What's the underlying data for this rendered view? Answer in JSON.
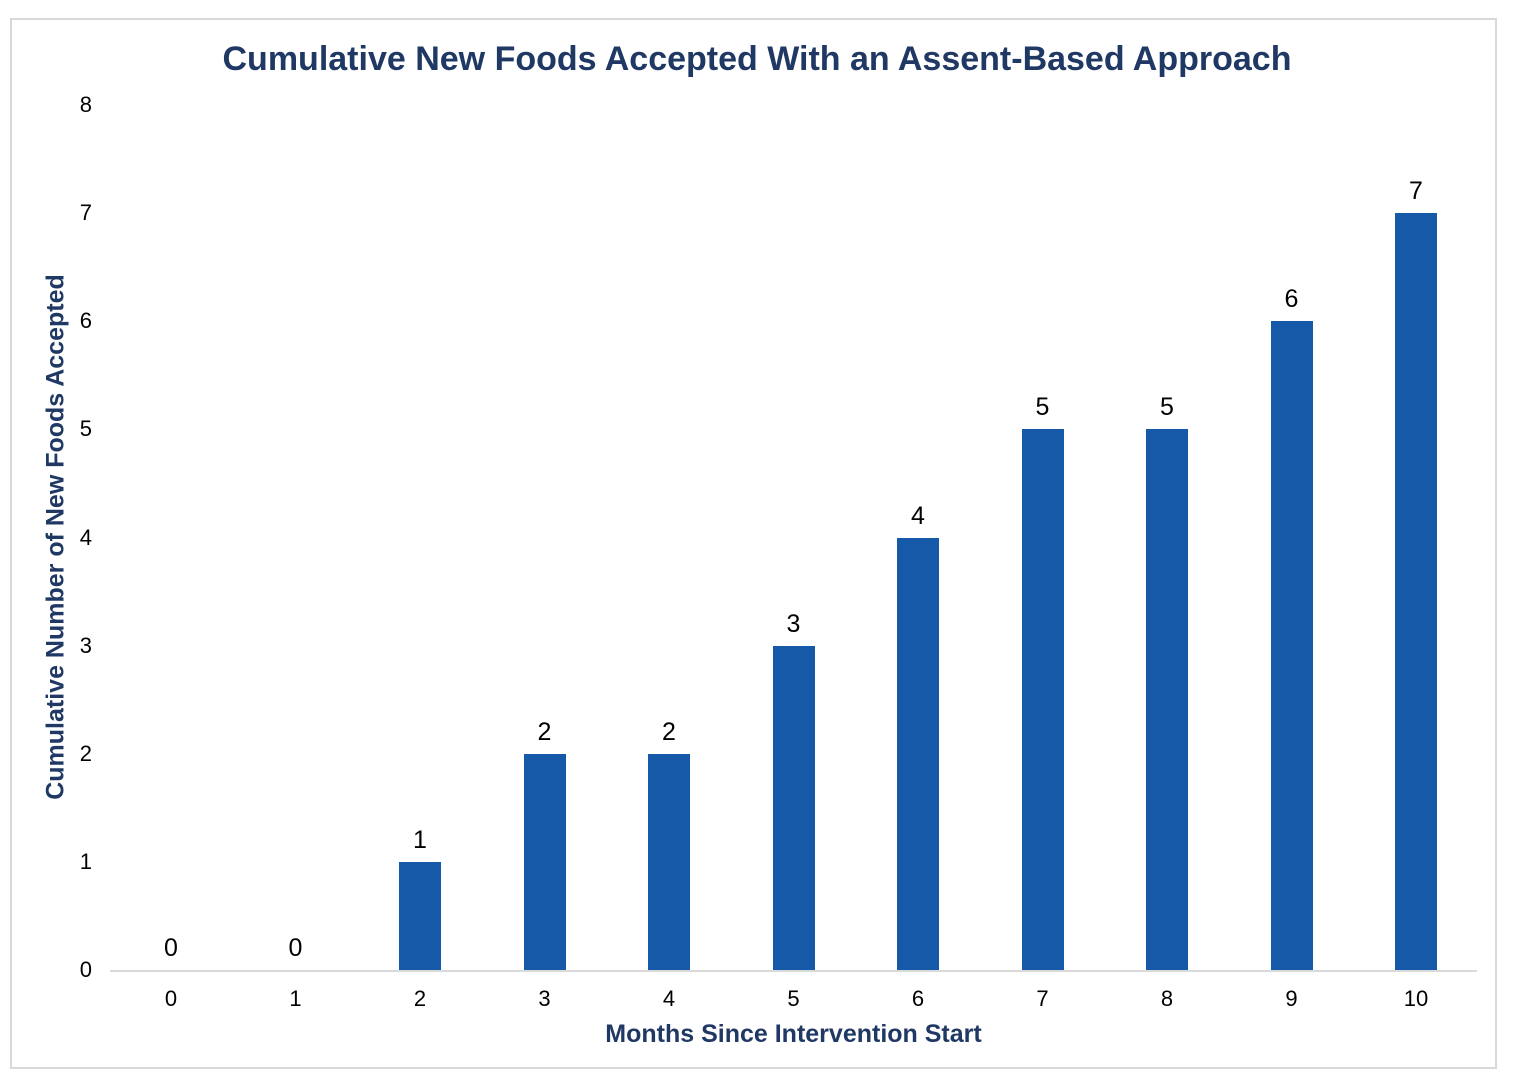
{
  "page": {
    "background_color": "#ffffff",
    "frame_border_color": "#D9D9D9"
  },
  "chart_data": {
    "type": "bar",
    "title": "Cumulative New Foods Accepted With an Assent-Based Approach",
    "xlabel": "Months Since Intervention Start",
    "ylabel": "Cumulative Number of New Foods Accepted",
    "categories": [
      "0",
      "1",
      "2",
      "3",
      "4",
      "5",
      "6",
      "7",
      "8",
      "9",
      "10"
    ],
    "values": [
      0,
      0,
      1,
      2,
      2,
      3,
      4,
      5,
      5,
      6,
      7
    ],
    "y_ticks": [
      "0",
      "1",
      "2",
      "3",
      "4",
      "5",
      "6",
      "7",
      "8"
    ],
    "ylim": [
      0,
      8
    ],
    "grid": false,
    "legend": "none",
    "data_labels_shown": true,
    "bar_color": "#1659A8",
    "title_color": "#203864",
    "axis_title_color": "#203864",
    "tick_label_color": "#000000",
    "axis_line_color": "#D9D9D9"
  }
}
